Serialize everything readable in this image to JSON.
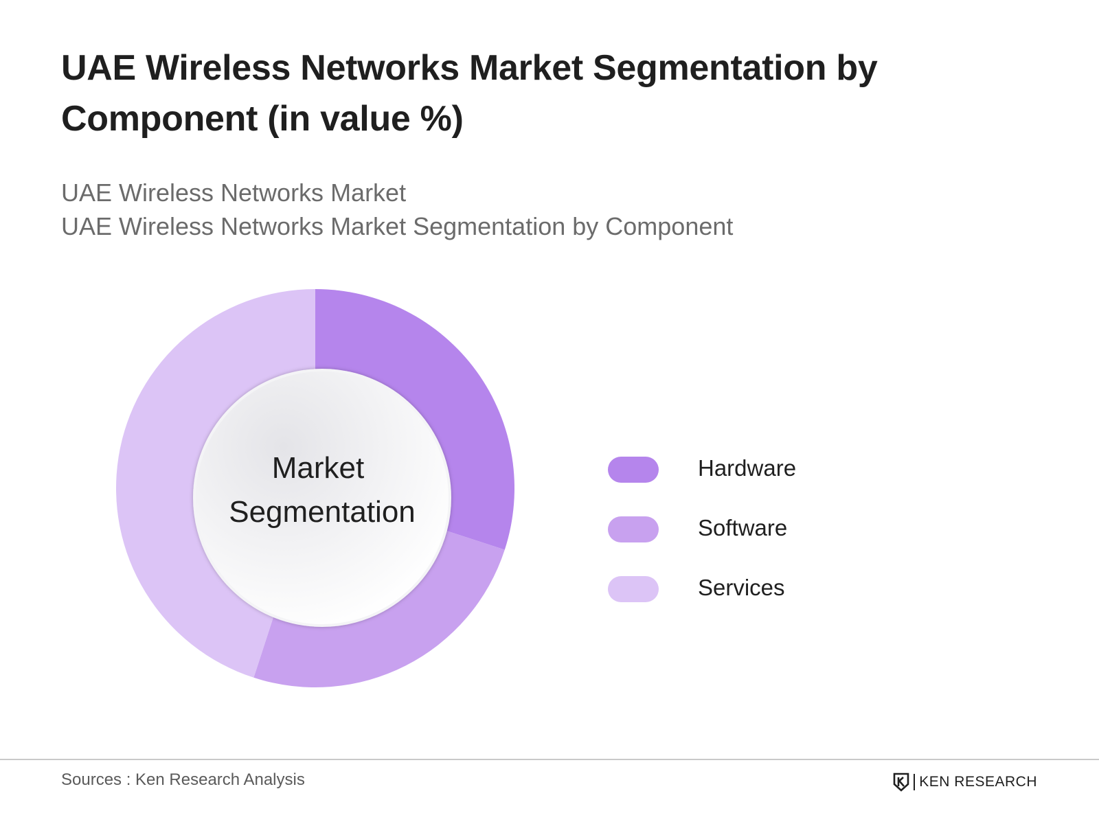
{
  "header": {
    "title": "UAE Wireless Networks Market Segmentation by Component (in value %)",
    "subtitle_line1": "UAE Wireless Networks Market",
    "subtitle_line2": "UAE Wireless Networks Market Segmentation by Component"
  },
  "chart_data": {
    "type": "pie",
    "variant": "donut",
    "center_label_line1": "Market",
    "center_label_line2": "Segmentation",
    "categories": [
      "Hardware",
      "Software",
      "Services"
    ],
    "values": [
      30,
      25,
      45
    ],
    "colors": [
      "#b585ec",
      "#c8a1ef",
      "#dcc4f6"
    ],
    "legend_position": "right"
  },
  "footer": {
    "source": "Sources : Ken Research Analysis",
    "brand": "KEN RESEARCH",
    "brand_icon": "ken-research-logo-icon"
  }
}
